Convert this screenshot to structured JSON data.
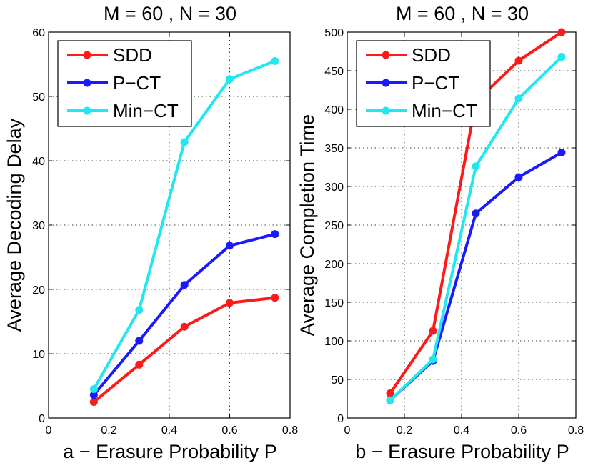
{
  "chart_data": [
    {
      "type": "line",
      "title": "M = 60 , N = 30",
      "xlabel": "a − Erasure Probability P",
      "ylabel": "Average Decoding Delay",
      "xlim": [
        0,
        0.8
      ],
      "ylim": [
        0,
        60
      ],
      "xticks": [
        0,
        0.2,
        0.4,
        0.6,
        0.8
      ],
      "xtick_labels": [
        "0",
        "0.2",
        "0.4",
        "0.6",
        "0.8"
      ],
      "yticks": [
        0,
        10,
        20,
        30,
        40,
        50,
        60
      ],
      "ytick_labels": [
        "0",
        "10",
        "20",
        "30",
        "40",
        "50",
        "60"
      ],
      "grid": true,
      "legend_position": "top-left",
      "x": [
        0.15,
        0.3,
        0.45,
        0.6,
        0.75
      ],
      "series": [
        {
          "name": "SDD",
          "color": "#ff1a1a",
          "values": [
            2.5,
            8.3,
            14.2,
            17.9,
            18.7
          ]
        },
        {
          "name": "P−CT",
          "color": "#1a1aff",
          "values": [
            3.6,
            12.0,
            20.7,
            26.8,
            28.6
          ]
        },
        {
          "name": "Min−CT",
          "color": "#22e6f0",
          "values": [
            4.5,
            16.8,
            42.9,
            52.7,
            55.5
          ]
        }
      ]
    },
    {
      "type": "line",
      "title": "M = 60 , N = 30",
      "xlabel": "b − Erasure Probability P",
      "ylabel": "Average Completion Time",
      "xlim": [
        0,
        0.8
      ],
      "ylim": [
        0,
        500
      ],
      "xticks": [
        0,
        0.2,
        0.4,
        0.6,
        0.8
      ],
      "xtick_labels": [
        "0",
        "0.2",
        "0.4",
        "0.6",
        "0.8"
      ],
      "yticks": [
        0,
        50,
        100,
        150,
        200,
        250,
        300,
        350,
        400,
        450,
        500
      ],
      "ytick_labels": [
        "0",
        "50",
        "100",
        "150",
        "200",
        "250",
        "300",
        "350",
        "400",
        "450",
        "500"
      ],
      "grid": true,
      "legend_position": "top-left",
      "x": [
        0.15,
        0.3,
        0.45,
        0.6,
        0.75
      ],
      "series": [
        {
          "name": "SDD",
          "color": "#ff1a1a",
          "values": [
            32,
            113,
            410,
            463,
            500
          ]
        },
        {
          "name": "P−CT",
          "color": "#1a1aff",
          "values": [
            23,
            74,
            265,
            312,
            344
          ]
        },
        {
          "name": "Min−CT",
          "color": "#22e6f0",
          "values": [
            23,
            76,
            326,
            414,
            468
          ]
        }
      ]
    }
  ]
}
